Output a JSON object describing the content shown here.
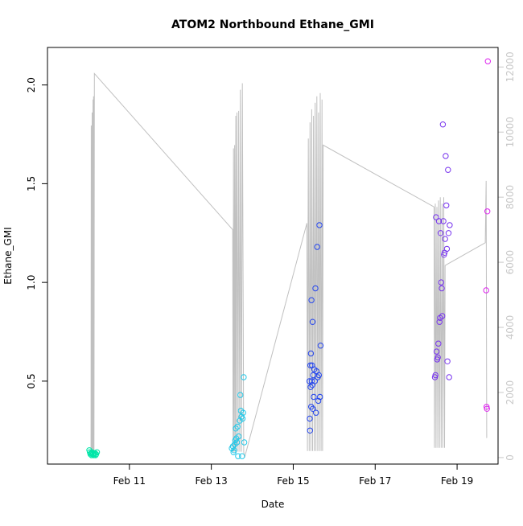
{
  "chart_data": {
    "type": "scatter",
    "title": "ATOM2 Northbound Ethane_GMI",
    "xlabel": "Date",
    "ylabel": "Ethane_GMI",
    "y2label": "",
    "xaxis": {
      "type": "date",
      "range": [
        "2017-02-09",
        "2017-02-20"
      ],
      "ticks": [
        "2017-02-11",
        "2017-02-13",
        "2017-02-15",
        "2017-02-17",
        "2017-02-19"
      ],
      "tick_labels": [
        "Feb 11",
        "Feb 13",
        "Feb 15",
        "Feb 17",
        "Feb 19"
      ]
    },
    "yaxis": {
      "range": [
        0.08,
        2.19
      ],
      "ticks": [
        0.5,
        1.0,
        1.5,
        2.0
      ],
      "tick_labels": [
        "0.5",
        "1.0",
        "1.5",
        "2.0"
      ]
    },
    "y2axis": {
      "range": [
        -200,
        12600
      ],
      "ticks": [
        0,
        2000,
        4000,
        6000,
        8000,
        10000,
        12000
      ],
      "tick_labels": [
        "0",
        "2000",
        "4000",
        "6000",
        "8000",
        "10000",
        "12000"
      ],
      "color": "#c8c8c8"
    },
    "grid": false,
    "legend": "none",
    "colors": {
      "altitude_line": "#c0c0c0",
      "frame": "#000000",
      "right_axis": "#c8c8c8"
    },
    "altitude": {
      "name": "",
      "points": [
        [
          "2017-02-10 01:30",
          150
        ],
        [
          "2017-02-10 01:40",
          10200
        ],
        [
          "2017-02-10 01:55",
          150
        ],
        [
          "2017-02-10 02:10",
          10600
        ],
        [
          "2017-02-10 02:25",
          150
        ],
        [
          "2017-02-10 02:40",
          11000
        ],
        [
          "2017-02-10 02:50",
          150
        ],
        [
          "2017-02-10 03:00",
          11100
        ],
        [
          "2017-02-10 03:15",
          150
        ],
        [
          "2017-02-10 03:30",
          11800
        ],
        [
          "2017-02-13 12:30",
          7000
        ],
        [
          "2017-02-13 12:45",
          180
        ],
        [
          "2017-02-13 13:00",
          9500
        ],
        [
          "2017-02-13 13:20",
          180
        ],
        [
          "2017-02-13 13:40",
          9600
        ],
        [
          "2017-02-13 14:00",
          180
        ],
        [
          "2017-02-13 14:20",
          10500
        ],
        [
          "2017-02-13 14:40",
          180
        ],
        [
          "2017-02-13 15:00",
          10600
        ],
        [
          "2017-02-13 15:40",
          180
        ],
        [
          "2017-02-13 16:00",
          10650
        ],
        [
          "2017-02-13 16:40",
          180
        ],
        [
          "2017-02-13 17:00",
          11300
        ],
        [
          "2017-02-13 17:40",
          180
        ],
        [
          "2017-02-13 18:10",
          11500
        ],
        [
          "2017-02-13 19:00",
          180
        ],
        [
          "2017-02-13 19:30",
          0
        ],
        [
          "2017-02-15 08:00",
          7200
        ],
        [
          "2017-02-15 08:20",
          200
        ],
        [
          "2017-02-15 08:50",
          9800
        ],
        [
          "2017-02-15 09:20",
          200
        ],
        [
          "2017-02-15 09:50",
          10300
        ],
        [
          "2017-02-15 10:20",
          200
        ],
        [
          "2017-02-15 10:50",
          10700
        ],
        [
          "2017-02-15 11:20",
          200
        ],
        [
          "2017-02-15 11:50",
          10500
        ],
        [
          "2017-02-15 12:20",
          200
        ],
        [
          "2017-02-15 12:50",
          10900
        ],
        [
          "2017-02-15 13:20",
          200
        ],
        [
          "2017-02-15 13:50",
          11100
        ],
        [
          "2017-02-15 14:20",
          200
        ],
        [
          "2017-02-15 14:50",
          10600
        ],
        [
          "2017-02-15 15:20",
          200
        ],
        [
          "2017-02-15 15:50",
          11200
        ],
        [
          "2017-02-15 16:20",
          200
        ],
        [
          "2017-02-15 16:50",
          11000
        ],
        [
          "2017-02-15 17:10",
          200
        ],
        [
          "2017-02-15 17:30",
          9600
        ],
        [
          "2017-02-18 10:30",
          7700
        ],
        [
          "2017-02-18 10:45",
          300
        ],
        [
          "2017-02-18 11:15",
          7800
        ],
        [
          "2017-02-18 11:40",
          300
        ],
        [
          "2017-02-18 12:10",
          7700
        ],
        [
          "2017-02-18 12:40",
          300
        ],
        [
          "2017-02-18 13:10",
          7900
        ],
        [
          "2017-02-18 13:40",
          300
        ],
        [
          "2017-02-18 14:10",
          8000
        ],
        [
          "2017-02-18 14:40",
          300
        ],
        [
          "2017-02-18 15:10",
          7800
        ],
        [
          "2017-02-18 15:40",
          300
        ],
        [
          "2017-02-18 16:10",
          8000
        ],
        [
          "2017-02-18 16:40",
          300
        ],
        [
          "2017-02-18 17:00",
          5900
        ],
        [
          "2017-02-19 16:30",
          6600
        ],
        [
          "2017-02-19 17:00",
          8500
        ],
        [
          "2017-02-19 17:20",
          600
        ]
      ]
    },
    "series": [
      {
        "name": "",
        "points": [
          [
            "2017-02-10 00:30",
            0.15
          ],
          [
            "2017-02-10 00:50",
            0.14
          ],
          [
            "2017-02-10 01:10",
            0.13
          ],
          [
            "2017-02-10 01:30",
            0.135
          ],
          [
            "2017-02-10 01:50",
            0.125
          ],
          [
            "2017-02-10 02:10",
            0.14
          ],
          [
            "2017-02-10 02:30",
            0.13
          ],
          [
            "2017-02-10 02:50",
            0.135
          ],
          [
            "2017-02-10 03:10",
            0.125
          ],
          [
            "2017-02-10 03:30",
            0.13
          ],
          [
            "2017-02-10 03:50",
            0.135
          ],
          [
            "2017-02-10 04:10",
            0.125
          ],
          [
            "2017-02-10 04:30",
            0.13
          ],
          [
            "2017-02-10 05:00",
            0.14
          ]
        ]
      },
      {
        "name": "",
        "points": [
          [
            "2017-02-13 12:00",
            0.16
          ],
          [
            "2017-02-13 12:40",
            0.17
          ],
          [
            "2017-02-13 13:00",
            0.14
          ],
          [
            "2017-02-13 13:20",
            0.15
          ],
          [
            "2017-02-13 13:40",
            0.18
          ],
          [
            "2017-02-13 14:00",
            0.2
          ],
          [
            "2017-02-13 14:20",
            0.26
          ],
          [
            "2017-02-13 14:40",
            0.21
          ],
          [
            "2017-02-13 15:00",
            0.19
          ],
          [
            "2017-02-13 15:20",
            0.27
          ],
          [
            "2017-02-13 15:40",
            0.12
          ],
          [
            "2017-02-13 16:00",
            0.22
          ],
          [
            "2017-02-13 16:40",
            0.3
          ],
          [
            "2017-02-13 17:00",
            0.43
          ],
          [
            "2017-02-13 17:20",
            0.35
          ],
          [
            "2017-02-13 17:40",
            0.32
          ],
          [
            "2017-02-13 18:00",
            0.12
          ],
          [
            "2017-02-13 18:20",
            0.31
          ],
          [
            "2017-02-13 18:40",
            0.34
          ],
          [
            "2017-02-13 19:00",
            0.52
          ],
          [
            "2017-02-13 19:20",
            0.19
          ]
        ]
      },
      {
        "name": "",
        "points": [
          [
            "2017-02-15 09:30",
            0.5
          ],
          [
            "2017-02-15 09:40",
            0.31
          ],
          [
            "2017-02-15 09:50",
            0.25
          ],
          [
            "2017-02-15 10:00",
            0.58
          ],
          [
            "2017-02-15 10:10",
            0.47
          ],
          [
            "2017-02-15 10:20",
            0.64
          ],
          [
            "2017-02-15 10:30",
            0.37
          ],
          [
            "2017-02-15 10:40",
            0.91
          ],
          [
            "2017-02-15 10:50",
            0.5
          ],
          [
            "2017-02-15 11:00",
            0.58
          ],
          [
            "2017-02-15 11:10",
            0.48
          ],
          [
            "2017-02-15 11:20",
            0.8
          ],
          [
            "2017-02-15 11:30",
            0.36
          ],
          [
            "2017-02-15 11:40",
            0.53
          ],
          [
            "2017-02-15 12:00",
            0.42
          ],
          [
            "2017-02-15 12:20",
            0.56
          ],
          [
            "2017-02-15 12:40",
            0.5
          ],
          [
            "2017-02-15 13:00",
            0.97
          ],
          [
            "2017-02-15 13:20",
            0.34
          ],
          [
            "2017-02-15 13:40",
            0.55
          ],
          [
            "2017-02-15 14:00",
            1.18
          ],
          [
            "2017-02-15 14:20",
            0.52
          ],
          [
            "2017-02-15 14:40",
            0.4
          ],
          [
            "2017-02-15 15:00",
            0.53
          ],
          [
            "2017-02-15 15:20",
            1.29
          ],
          [
            "2017-02-15 15:40",
            0.42
          ],
          [
            "2017-02-15 16:00",
            0.68
          ]
        ]
      },
      {
        "name": "",
        "points": [
          [
            "2017-02-18 11:00",
            0.52
          ],
          [
            "2017-02-18 11:20",
            0.53
          ],
          [
            "2017-02-18 11:40",
            1.33
          ],
          [
            "2017-02-18 12:00",
            0.65
          ],
          [
            "2017-02-18 12:20",
            0.61
          ],
          [
            "2017-02-18 12:40",
            0.62
          ],
          [
            "2017-02-18 13:00",
            0.69
          ],
          [
            "2017-02-18 13:20",
            1.31
          ],
          [
            "2017-02-18 13:40",
            0.8
          ],
          [
            "2017-02-18 14:00",
            0.82
          ],
          [
            "2017-02-18 14:20",
            1.25
          ],
          [
            "2017-02-18 14:40",
            1.0
          ],
          [
            "2017-02-18 15:00",
            0.97
          ],
          [
            "2017-02-18 15:20",
            0.83
          ],
          [
            "2017-02-18 15:40",
            1.8
          ],
          [
            "2017-02-18 16:00",
            1.31
          ],
          [
            "2017-02-18 16:20",
            1.14
          ],
          [
            "2017-02-18 16:40",
            1.15
          ],
          [
            "2017-02-18 17:00",
            1.22
          ],
          [
            "2017-02-18 17:20",
            1.64
          ],
          [
            "2017-02-18 17:40",
            1.39
          ],
          [
            "2017-02-18 18:00",
            1.17
          ],
          [
            "2017-02-18 18:20",
            0.6
          ],
          [
            "2017-02-18 18:40",
            1.57
          ],
          [
            "2017-02-18 19:00",
            1.25
          ],
          [
            "2017-02-18 19:20",
            0.52
          ],
          [
            "2017-02-18 19:40",
            1.29
          ]
        ]
      },
      {
        "name": "",
        "points": [
          [
            "2017-02-19 17:00",
            0.96
          ],
          [
            "2017-02-19 17:15",
            0.37
          ],
          [
            "2017-02-19 17:30",
            0.36
          ],
          [
            "2017-02-19 17:45",
            1.36
          ],
          [
            "2017-02-19 18:00",
            2.12
          ]
        ]
      }
    ],
    "series_colors": [
      "#00e6a8",
      "#22c8e8",
      "#2244ee",
      "#7733ee",
      "#dd22ee"
    ]
  }
}
